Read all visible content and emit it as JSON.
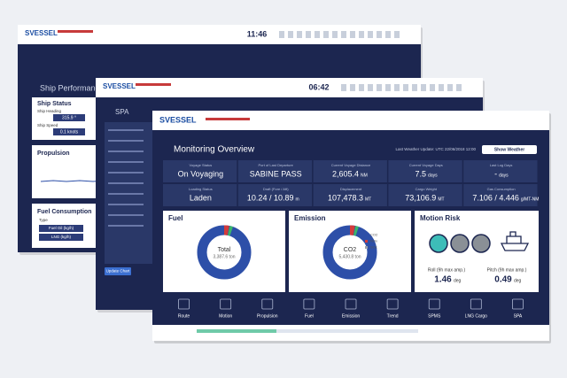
{
  "back_window": {
    "logo": "SVESSEL",
    "time": "11:46",
    "title": "Ship Performance",
    "ship_status": "Ship Status",
    "heading_label": "Ship Heading",
    "heading_value": "315.9 °",
    "speed_label": "Ship Speed",
    "speed_value": "0.1 knots",
    "propulsion": "Propulsion",
    "fuel_consumption": "Fuel Consumption",
    "fuel_type": "Type",
    "fuel_rows": [
      "Fuel Oil (kg/h)",
      "LNG (kg/h)"
    ]
  },
  "middle_window": {
    "logo": "SVESSEL",
    "time": "06:42",
    "title": "SPA",
    "button": "Update Chart"
  },
  "front_window": {
    "logo": "SVESSEL",
    "title": "Monitoring Overview",
    "weather_update": "Last Weather Update: UTC 22/06/2018 12:00",
    "weather_button": "Show Weather",
    "cards": [
      {
        "label": "Voyage Status",
        "value": "On Voyaging"
      },
      {
        "label": "Port of Last Departure",
        "value": "SABINE PASS"
      },
      {
        "label": "Current Voyage Distance",
        "value": "2,605.4",
        "unit": "NM"
      },
      {
        "label": "Current Voyage Days",
        "value": "7.5",
        "unit": "days"
      },
      {
        "label": "Last Log Days",
        "value": "-",
        "unit": "days"
      },
      {
        "label": "Loading Status",
        "value": "Laden"
      },
      {
        "label": "Draft (Fore / Aft)",
        "value": "10.24 / 10.89",
        "unit": "m"
      },
      {
        "label": "Displacement",
        "value": "107,478.3",
        "unit": "MT"
      },
      {
        "label": "Cargo Weight",
        "value": "73,106.9",
        "unit": "MT"
      },
      {
        "label": "Gas Consumption",
        "value": "7.106 / 4.446",
        "unit": "g/MT-NM"
      }
    ],
    "fuel": {
      "title": "Fuel",
      "center_label": "Total",
      "center_value": "3,387.6 ton"
    },
    "emission": {
      "title": "Emission",
      "center_label": "CO2",
      "center_value": "5,430.8 ton",
      "legend": [
        "CO2",
        "NOx",
        "SOx"
      ]
    },
    "motion": {
      "title": "Motion Risk",
      "roll_label": "Roll (9h max amp.)",
      "roll_value": "1.46",
      "roll_unit": "deg",
      "pitch_label": "Pitch (9h max amp.)",
      "pitch_value": "0.49",
      "pitch_unit": "deg"
    },
    "nav": [
      "Route",
      "Motion",
      "Propulsion",
      "Fuel",
      "Emission",
      "Trend",
      "SPMS",
      "LNG Cargo",
      "SPA"
    ]
  }
}
